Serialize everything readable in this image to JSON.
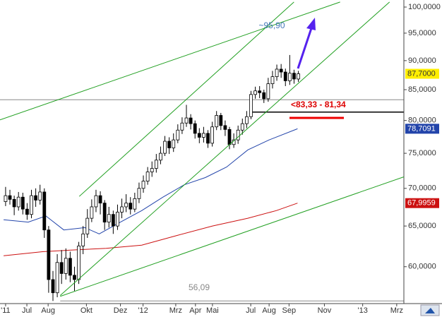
{
  "chart_data": {
    "type": "candlestick",
    "log_scale": true,
    "xlim": [
      2011.38,
      2013.184
    ],
    "ylim": [
      55.8,
      101.4
    ],
    "xticks": [
      {
        "value": 2011.405,
        "label": "'11"
      },
      {
        "value": 2011.5,
        "label": "Jul"
      },
      {
        "value": 2011.595,
        "label": "Aug"
      },
      {
        "value": 2011.766,
        "label": "Okt"
      },
      {
        "value": 2011.918,
        "label": "Dez"
      },
      {
        "value": 2012.019,
        "label": "'12"
      },
      {
        "value": 2012.165,
        "label": "Mrz"
      },
      {
        "value": 2012.253,
        "label": "Apr"
      },
      {
        "value": 2012.329,
        "label": "Mai"
      },
      {
        "value": 2012.5,
        "label": "Jul"
      },
      {
        "value": 2012.582,
        "label": "Aug"
      },
      {
        "value": 2012.671,
        "label": "Sep"
      },
      {
        "value": 2012.829,
        "label": "Nov"
      },
      {
        "value": 2013.0,
        "label": "'13"
      },
      {
        "value": 2013.152,
        "label": "Mrz"
      }
    ],
    "yticks": [
      {
        "value": 100,
        "label": "100,0000"
      },
      {
        "value": 95,
        "label": "95,0000"
      },
      {
        "value": 90,
        "label": "90,0000"
      },
      {
        "value": 85,
        "label": "85,0000"
      },
      {
        "value": 80,
        "label": "80,0000"
      },
      {
        "value": 75,
        "label": "75,0000"
      },
      {
        "value": 70,
        "label": "70,0000"
      },
      {
        "value": 65,
        "label": "65,0000"
      },
      {
        "value": 60,
        "label": "60,0000"
      }
    ],
    "candles": {
      "x0": 2011.405,
      "step": 0.01923,
      "open": [
        68.2,
        69.0,
        68.5,
        67.5,
        68.8,
        67.2,
        66.5,
        69.0,
        68.4,
        69.5,
        64.5,
        58.5,
        57.0,
        60.5,
        59.2,
        61.0,
        59.0,
        58.5,
        62.5,
        64.0,
        66.0,
        67.5,
        69.0,
        68.0,
        65.5,
        66.5,
        65.0,
        66.8,
        67.5,
        68.0,
        67.2,
        68.6,
        70.0,
        71.0,
        72.3,
        72.8,
        74.0,
        75.0,
        76.8,
        75.8,
        77.0,
        78.5,
        79.6,
        80.4,
        79.5,
        78.0,
        77.4,
        78.0,
        76.5,
        79.0,
        80.8,
        79.2,
        78.6,
        76.3,
        77.0,
        78.5,
        79.5,
        80.6,
        84.2,
        84.8,
        84.5,
        83.5,
        86.0,
        87.2,
        88.5,
        88.0,
        86.5,
        87.8,
        86.8
      ],
      "high": [
        70.2,
        69.8,
        69.0,
        69.5,
        69.4,
        68.0,
        69.8,
        70.0,
        70.5,
        70.0,
        65.0,
        59.5,
        61.5,
        62.0,
        62.2,
        61.8,
        60.0,
        63.0,
        65.0,
        67.2,
        68.5,
        69.8,
        69.6,
        68.4,
        67.5,
        67.0,
        67.8,
        68.6,
        69.2,
        68.8,
        69.4,
        70.8,
        71.8,
        73.0,
        73.8,
        74.9,
        76.0,
        77.6,
        77.4,
        78.0,
        79.4,
        80.5,
        82.5,
        81.0,
        80.0,
        78.8,
        79.0,
        78.5,
        79.8,
        81.5,
        81.2,
        80.0,
        79.0,
        78.0,
        79.2,
        80.3,
        81.5,
        84.8,
        85.5,
        85.6,
        85.0,
        87.0,
        88.2,
        89.3,
        89.4,
        88.6,
        91.0,
        88.4,
        88.2
      ],
      "low": [
        67.6,
        67.8,
        66.4,
        67.0,
        66.5,
        65.8,
        66.0,
        67.5,
        67.8,
        63.5,
        57.0,
        56.09,
        56.5,
        58.0,
        58.5,
        58.2,
        57.2,
        58.0,
        61.5,
        63.5,
        65.5,
        66.8,
        66.5,
        64.5,
        64.8,
        64.0,
        64.5,
        66.0,
        66.8,
        66.5,
        66.8,
        68.0,
        69.4,
        70.5,
        71.6,
        72.2,
        73.4,
        74.6,
        74.9,
        75.2,
        76.5,
        77.9,
        79.0,
        78.6,
        77.2,
        76.5,
        76.6,
        75.8,
        76.0,
        78.5,
        78.5,
        77.6,
        75.6,
        75.8,
        76.4,
        77.8,
        78.8,
        80.2,
        83.5,
        83.6,
        82.8,
        83.0,
        85.2,
        86.5,
        87.0,
        85.6,
        85.8,
        86.0,
        86.3
      ],
      "close": [
        69.0,
        68.5,
        67.5,
        68.8,
        67.2,
        66.5,
        69.0,
        68.4,
        69.5,
        64.5,
        58.5,
        57.0,
        60.5,
        59.2,
        61.0,
        59.0,
        58.5,
        62.5,
        64.0,
        66.0,
        67.5,
        69.0,
        68.0,
        65.5,
        66.5,
        65.0,
        66.8,
        67.5,
        68.0,
        67.2,
        68.6,
        70.0,
        71.0,
        72.3,
        72.8,
        74.0,
        75.0,
        76.8,
        75.8,
        77.0,
        78.5,
        79.6,
        80.4,
        79.5,
        78.0,
        77.4,
        78.0,
        76.5,
        79.0,
        80.8,
        79.2,
        78.6,
        76.3,
        77.0,
        78.5,
        79.5,
        80.6,
        84.2,
        84.8,
        84.5,
        83.5,
        86.0,
        87.2,
        88.5,
        88.0,
        86.5,
        87.8,
        86.8,
        87.7
      ],
      "last_label": "87,7000"
    },
    "series": [
      {
        "color": "#2244aa",
        "x": [
          2011.396,
          2011.506,
          2011.585,
          2011.665,
          2011.759,
          2011.823,
          2011.918,
          2012.013,
          2012.108,
          2012.203,
          2012.297,
          2012.392,
          2012.487,
          2012.582,
          2012.709
        ],
        "values": [
          65.8,
          65.5,
          66.3,
          64.5,
          64.8,
          64.0,
          65.5,
          67.0,
          68.8,
          70.5,
          71.5,
          73.0,
          75.5,
          77.0,
          78.7091
        ],
        "last_label": "78,7091"
      },
      {
        "color": "#cc1111",
        "x": [
          2011.396,
          2011.57,
          2011.696,
          2011.854,
          2012.013,
          2012.171,
          2012.329,
          2012.487,
          2012.614,
          2012.709
        ],
        "values": [
          61.3,
          61.8,
          62.0,
          62.2,
          62.6,
          63.8,
          65.0,
          66.0,
          67.0,
          67.9959
        ],
        "last_label": "67,9959"
      }
    ],
    "trendlines": {
      "color": "#22a022",
      "lines": [
        {
          "x": [
            2011.38,
            2012.899
          ],
          "values": [
            80.1,
            101.0
          ]
        },
        {
          "x": [
            2011.734,
            2012.693
          ],
          "values": [
            68.9,
            101.0
          ]
        },
        {
          "x": [
            2011.649,
            2013.12
          ],
          "values": [
            56.7,
            101.0
          ]
        },
        {
          "x": [
            2011.649,
            2013.184
          ],
          "values": [
            56.6,
            71.6
          ]
        }
      ]
    },
    "levels": [
      {
        "value": 83.33,
        "color": "#888888"
      },
      {
        "value": 81.34,
        "color": "#000000",
        "from": 2012.497
      },
      {
        "value": 56.09,
        "color": "#888888",
        "from": 2011.649
      }
    ],
    "annotations": [
      {
        "text": "~95,90",
        "color": "#4477bb"
      },
      {
        "text": "56,09",
        "color": "#888888"
      },
      {
        "text": "<83,33 - 81,34",
        "color": "#dd0000"
      }
    ]
  }
}
